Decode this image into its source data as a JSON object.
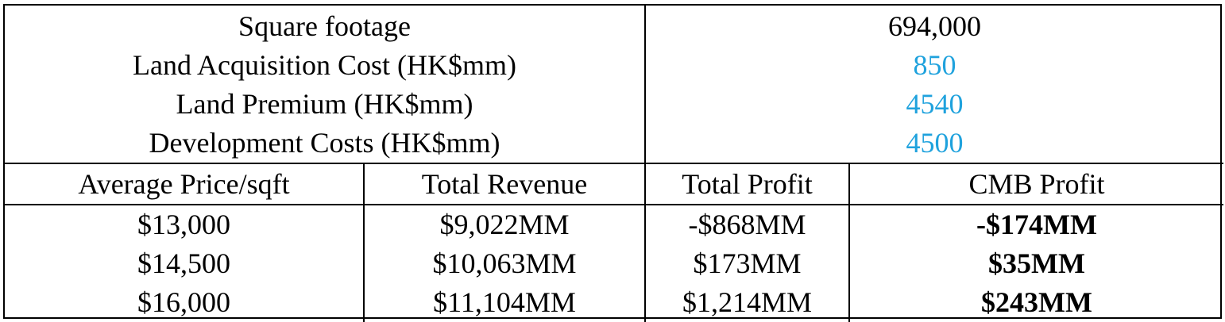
{
  "inputs": [
    {
      "label": "Square footage",
      "value": "694,000",
      "highlight": false
    },
    {
      "label": "Land Acquisition Cost (HK$mm)",
      "value": "850",
      "highlight": true
    },
    {
      "label": "Land Premium (HK$mm)",
      "value": "4540",
      "highlight": true
    },
    {
      "label": "Development Costs (HK$mm)",
      "value": "4500",
      "highlight": true
    }
  ],
  "headers": [
    "Average Price/sqft",
    "Total Revenue",
    "Total Profit",
    "CMB Profit"
  ],
  "rows": [
    [
      "$13,000",
      "$9,022MM",
      "-$868MM",
      "-$174MM"
    ],
    [
      "$14,500",
      "$10,063MM",
      "$173MM",
      "$35MM"
    ],
    [
      "$16,000",
      "$11,104MM",
      "$1,214MM",
      "$243MM"
    ]
  ],
  "colors": {
    "input_value": "#1fa2dd",
    "text": "#000000",
    "border": "#000000"
  }
}
